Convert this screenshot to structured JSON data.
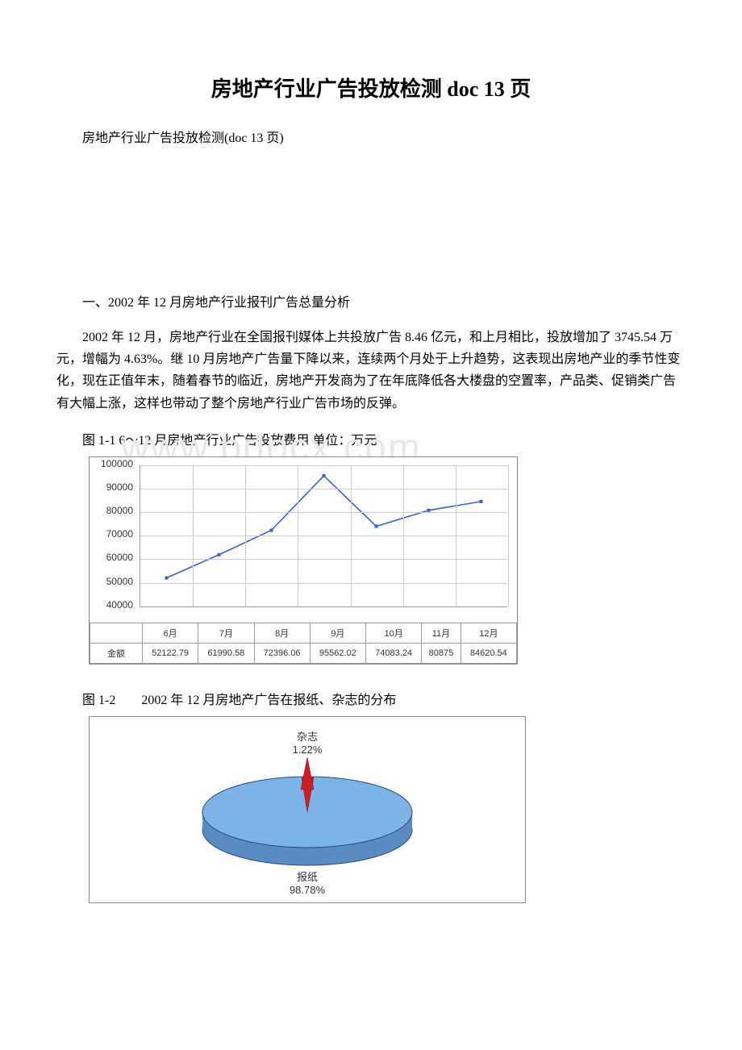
{
  "title": "房地产行业广告投放检测 doc 13 页",
  "subtitle": "房地产行业广告投放检测(doc 13 页)",
  "section1_heading": "一、2002 年 12 月房地产行业报刊广告总量分析",
  "body1": "2002 年 12 月，房地产行业在全国报刊媒体上共投放广告 8.46 亿元，和上月相比，投放增加了 3745.54 万元，增幅为 4.63%。继 10 月房地产广告量下降以来，连续两个月处于上升趋势，这表现出房地产业的季节性变化，现在正值年末，随着春节的临近，房地产开发商为了在年底降低各大楼盘的空置率，产品类、促销类广告有大幅上涨，这样也带动了整个房地产行业广告市场的反弹。",
  "chart1_caption": "图 1-1 6～12 月房地产行业广告投放费用 单位：万元",
  "chart2_caption": "图 1-2　　2002 年 12 月房地产广告在报纸、杂志的分布",
  "watermark": "www.bdocx.com",
  "line_chart": {
    "type": "line",
    "categories": [
      "6月",
      "7月",
      "8月",
      "9月",
      "10月",
      "11月",
      "12月"
    ],
    "values": [
      52122.79,
      61990.58,
      72396.06,
      95562.02,
      74083.24,
      80875,
      84620.54
    ],
    "row_label": "金额",
    "ylim": [
      40000,
      100000
    ],
    "ytick_step": 10000,
    "yticks": [
      40000,
      50000,
      60000,
      70000,
      80000,
      90000,
      100000
    ],
    "line_color": "#3a5fcd",
    "grid_color": "#cccccc",
    "border_color": "#888888",
    "background_color": "#ffffff",
    "font_size": 12
  },
  "pie_chart": {
    "type": "pie",
    "slices": [
      {
        "label": "报纸",
        "percent": "98.78%",
        "color": "#7db4e8"
      },
      {
        "label": "杂志",
        "percent": "1.22%",
        "color": "#cc2020"
      }
    ],
    "side_color": "#5a8cc4",
    "outline_color": "#2a4a7a",
    "background_color": "#ffffff",
    "label_fontsize": 13
  }
}
